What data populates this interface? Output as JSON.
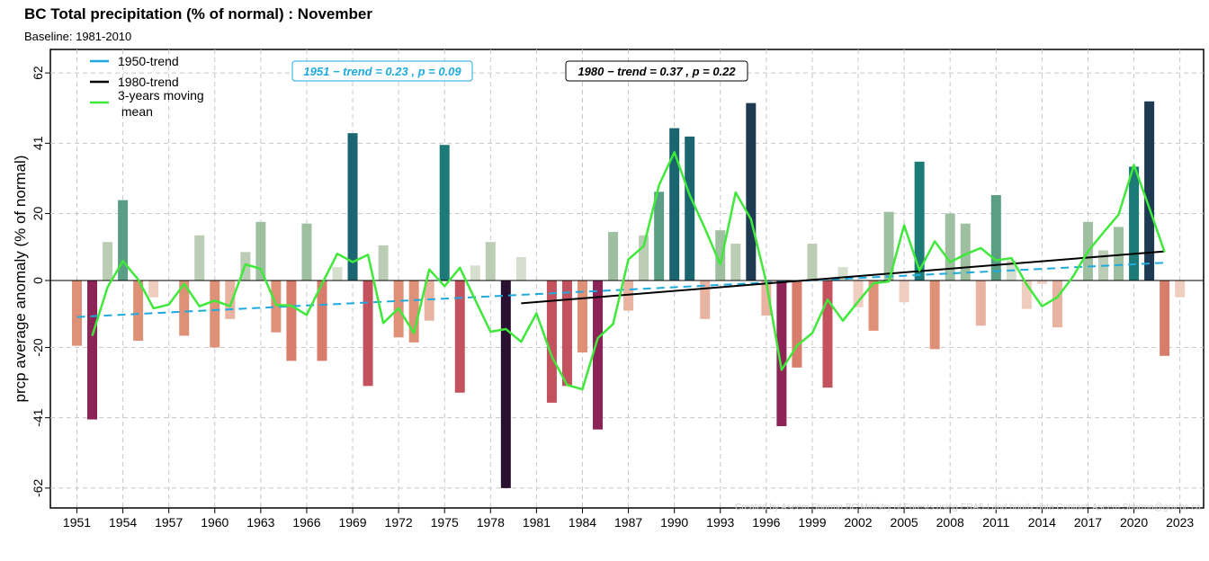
{
  "chart_data": {
    "type": "bar",
    "title": "BC Total precipitation (% of normal) : November",
    "subtitle": "Baseline: 1981-2010",
    "ylabel": "prcp average anomaly (% of normal)",
    "xlabel": "",
    "ylim": [
      -68,
      70
    ],
    "yticks": [
      62,
      41,
      20,
      0,
      -20,
      -41,
      -62
    ],
    "xticks": [
      1951,
      1954,
      1957,
      1960,
      1963,
      1966,
      1969,
      1972,
      1975,
      1978,
      1981,
      1984,
      1987,
      1990,
      1993,
      1996,
      1999,
      2002,
      2005,
      2008,
      2011,
      2014,
      2017,
      2020,
      2023
    ],
    "grid": true,
    "legend_position": "top-left",
    "years": [
      1951,
      1952,
      1953,
      1954,
      1955,
      1956,
      1957,
      1958,
      1959,
      1960,
      1961,
      1962,
      1963,
      1964,
      1965,
      1966,
      1967,
      1968,
      1969,
      1970,
      1971,
      1972,
      1973,
      1974,
      1975,
      1976,
      1977,
      1978,
      1979,
      1980,
      1981,
      1982,
      1983,
      1984,
      1985,
      1986,
      1987,
      1988,
      1989,
      1990,
      1991,
      1992,
      1993,
      1994,
      1995,
      1996,
      1997,
      1998,
      1999,
      2000,
      2001,
      2002,
      2003,
      2004,
      2005,
      2006,
      2007,
      2008,
      2009,
      2010,
      2011,
      2012,
      2013,
      2014,
      2015,
      2016,
      2017,
      2018,
      2019,
      2020,
      2021,
      2022,
      2023
    ],
    "values": [
      -19.5,
      -41.5,
      11.5,
      24,
      -18,
      -5,
      0,
      -16.5,
      13.5,
      -20,
      -11.5,
      8.5,
      17.5,
      -15.5,
      -24,
      17,
      -24,
      4,
      44,
      -31.5,
      10.5,
      -17,
      -18.5,
      -12,
      40.5,
      -33.5,
      4.5,
      11.5,
      -62,
      7,
      0,
      -36.5,
      -31.5,
      -21.5,
      -44.5,
      14.5,
      -9,
      13.5,
      26.5,
      45.5,
      43,
      -11.5,
      15,
      11,
      53,
      -10.5,
      -43.5,
      -26,
      11,
      -32,
      4,
      -8,
      -15,
      20.5,
      -6.5,
      35.5,
      -20.5,
      20,
      17,
      -13.5,
      25.5,
      6,
      -8.5,
      -1,
      -14,
      0,
      17.5,
      9,
      16,
      34,
      53.5,
      -22.5,
      -5
    ],
    "moving_mean_x": [
      1952,
      1953,
      1954,
      1955,
      1956,
      1957,
      1958,
      1959,
      1960,
      1961,
      1962,
      1963,
      1964,
      1965,
      1966,
      1967,
      1968,
      1969,
      1970,
      1971,
      1972,
      1973,
      1974,
      1975,
      1976,
      1977,
      1978,
      1979,
      1980,
      1981,
      1982,
      1983,
      1984,
      1985,
      1986,
      1987,
      1988,
      1989,
      1990,
      1991,
      1992,
      1993,
      1994,
      1995,
      1996,
      1997,
      1998,
      1999,
      2000,
      2001,
      2002,
      2003,
      2004,
      2005,
      2006,
      2007,
      2008,
      2009,
      2010,
      2011,
      2012,
      2013,
      2014,
      2015,
      2016,
      2017,
      2018,
      2019,
      2020,
      2021,
      2022
    ],
    "moving_mean": [
      -16.5,
      -2,
      5.8,
      0.3,
      -8.3,
      -7.2,
      -1,
      -7.7,
      -6,
      -7.7,
      4.8,
      3.5,
      -7.3,
      -7.5,
      -10.3,
      -1,
      8,
      5.5,
      7.7,
      -12.7,
      -8.3,
      -15.7,
      3.3,
      -1.7,
      3.8,
      -5.8,
      -15.3,
      -14.5,
      -18.3,
      -9.8,
      -22.7,
      -31.2,
      -32.5,
      -17.2,
      -13,
      6.3,
      10.3,
      28.5,
      38.3,
      25.5,
      15.5,
      4.8,
      26.3,
      18.3,
      -0.5,
      -26.7,
      -19.5,
      -15.7,
      -5.7,
      -12,
      -6.3,
      -0.8,
      -0.3,
      16.5,
      3,
      11.7,
      5.5,
      7.8,
      9.7,
      6,
      6.7,
      -1.2,
      -7.7,
      -5,
      1,
      8.7,
      14.3,
      19.7,
      34.5,
      21.7,
      8.5
    ],
    "bar_colors": {
      "pos_faint": "#d6dece",
      "pos_light": "#bccdb5",
      "pos_mid": "#9ec0a1",
      "pos_strong": "#5a9e86",
      "pos_teal": "#1d7b77",
      "pos_dark_teal": "#1b6571",
      "pos_navy": "#1e3a52",
      "neg_faint": "#efcdbf",
      "neg_light": "#e8b3a0",
      "neg_mid": "#df9178",
      "neg_strong": "#d87d6c",
      "neg_red": "#c4525e",
      "neg_crimson": "#8c2457",
      "neg_darkest": "#2a1030"
    },
    "series": [
      {
        "name": "1950-trend",
        "color": "#1eaadf",
        "style": "dashed",
        "x": [
          1951,
          2022
        ],
        "y": [
          -10.9,
          5.3
        ]
      },
      {
        "name": "1980-trend",
        "color": "#000000",
        "style": "solid",
        "x": [
          1980,
          2022
        ],
        "y": [
          -6.8,
          8.7
        ]
      },
      {
        "name": "3-years moving mean",
        "color": "#3fe83a",
        "style": "solid"
      }
    ],
    "legend": {
      "trend1950": "1950-trend",
      "trend1980": "1980-trend",
      "moving_line1": "3-years moving",
      "moving_line2": " mean"
    },
    "annotations": {
      "trend1951": "1951 − trend = 0.23 , p = 0.09",
      "trend1980": "1980 − trend = 0.37 , p = 0.22"
    },
    "watermark": "Created by Aseem Sharma BC Ministry of Forests using ERA5-Land hourly data Contact: Aseem.Sharma@gov.bc.ca"
  }
}
